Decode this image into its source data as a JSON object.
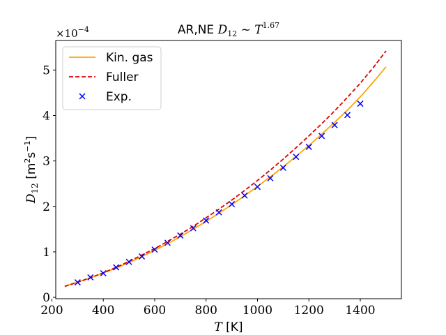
{
  "chart_data": {
    "type": "line",
    "title_text": "AR,NE",
    "title_math": "D",
    "title_math_sub": "12",
    "title_math_rel": " ~ T",
    "title_math_sup": "1.67",
    "xlabel_var": "T",
    "xlabel_unit": " [K]",
    "ylabel_var": "D",
    "ylabel_sub": "12",
    "ylabel_unit_a": " [m",
    "ylabel_unit_sup1": "2",
    "ylabel_unit_b": "s",
    "ylabel_unit_sup2": "−1",
    "ylabel_unit_c": "]",
    "y_multiplier_base": "×10",
    "y_multiplier_exp": "−4",
    "xlim": [
      215,
      1560
    ],
    "ylim": [
      -0.03,
      5.65
    ],
    "x_ticks": [
      200,
      400,
      600,
      800,
      1000,
      1200,
      1400
    ],
    "y_ticks": [
      0,
      1,
      2,
      3,
      4,
      5
    ],
    "grid": false,
    "legend_position": "top-left",
    "series": [
      {
        "name": "Kin. gas",
        "style": "solid",
        "color": "#ffa500",
        "x": [
          250,
          300,
          350,
          400,
          450,
          500,
          550,
          600,
          650,
          700,
          750,
          800,
          850,
          900,
          950,
          1000,
          1050,
          1100,
          1150,
          1200,
          1250,
          1300,
          1350,
          1400,
          1450,
          1500
        ],
        "y": [
          0.25,
          0.335,
          0.43,
          0.535,
          0.645,
          0.765,
          0.895,
          1.035,
          1.18,
          1.335,
          1.5,
          1.67,
          1.85,
          2.04,
          2.235,
          2.44,
          2.65,
          2.87,
          3.1,
          3.34,
          3.59,
          3.85,
          4.12,
          4.41,
          4.73,
          5.07
        ]
      },
      {
        "name": "Fuller",
        "style": "dashed",
        "color": "#dd0000",
        "x": [
          250,
          300,
          350,
          400,
          450,
          500,
          550,
          600,
          650,
          700,
          750,
          800,
          850,
          900,
          950,
          1000,
          1050,
          1100,
          1150,
          1200,
          1250,
          1300,
          1350,
          1400,
          1450,
          1500
        ],
        "y": [
          0.24,
          0.33,
          0.43,
          0.54,
          0.66,
          0.79,
          0.93,
          1.07,
          1.23,
          1.39,
          1.56,
          1.75,
          1.94,
          2.14,
          2.35,
          2.57,
          2.8,
          3.04,
          3.29,
          3.55,
          3.82,
          4.1,
          4.4,
          4.71,
          5.05,
          5.42
        ]
      },
      {
        "name": "Exp.",
        "style": "markers",
        "marker": "x",
        "color": "#0000ff",
        "x": [
          300,
          350,
          400,
          450,
          500,
          550,
          600,
          650,
          700,
          750,
          800,
          850,
          900,
          950,
          1000,
          1050,
          1100,
          1150,
          1200,
          1250,
          1300,
          1350,
          1400
        ],
        "y": [
          0.33,
          0.44,
          0.53,
          0.66,
          0.78,
          0.9,
          1.05,
          1.2,
          1.36,
          1.52,
          1.69,
          1.87,
          2.05,
          2.24,
          2.43,
          2.62,
          2.85,
          3.09,
          3.31,
          3.55,
          3.79,
          4.01,
          4.26
        ]
      }
    ]
  }
}
